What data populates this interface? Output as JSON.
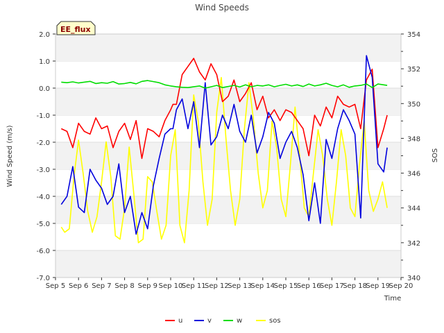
{
  "chart_data": {
    "type": "line",
    "title": "Wind Speeds",
    "badge": "EE_flux",
    "xlabel": "Time",
    "ylabel": "Wind Speed (m/s)",
    "y2label": "SOS",
    "x_ticks": [
      "Sep 5",
      "Sep 6",
      "Sep 7",
      "Sep 8",
      "Sep 9",
      "Sep 10",
      "Sep 11",
      "Sep 12",
      "Sep 13",
      "Sep 14",
      "Sep 15",
      "Sep 16",
      "Sep 17",
      "Sep 18",
      "Sep 19",
      "Sep 20"
    ],
    "xlim": [
      5,
      20
    ],
    "ylim": [
      -7.0,
      2.0
    ],
    "y_ticks": [
      "-7.0",
      "-6.0",
      "-5.0",
      "-4.0",
      "-3.0",
      "-2.0",
      "-1.0",
      "0.0",
      "1.0",
      "2.0"
    ],
    "y2lim": [
      340,
      354
    ],
    "y2_ticks": [
      "340",
      "342",
      "344",
      "346",
      "348",
      "350",
      "352",
      "354"
    ],
    "grid": "horizontal bands",
    "legend_position": "bottom-center",
    "series": [
      {
        "name": "u",
        "axis": "left",
        "color": "#ff0000",
        "x": [
          5.25,
          5.5,
          5.75,
          6.0,
          6.25,
          6.5,
          6.75,
          7.0,
          7.25,
          7.5,
          7.75,
          8.0,
          8.25,
          8.5,
          8.75,
          9.0,
          9.25,
          9.5,
          9.75,
          10.0,
          10.1,
          10.25,
          10.5,
          10.75,
          11.0,
          11.25,
          11.5,
          11.75,
          12.0,
          12.25,
          12.5,
          12.75,
          13.0,
          13.25,
          13.5,
          13.75,
          14.0,
          14.25,
          14.5,
          14.75,
          15.0,
          15.25,
          15.5,
          15.75,
          16.0,
          16.25,
          16.5,
          16.75,
          17.0,
          17.25,
          17.5,
          17.75,
          18.0,
          18.25,
          18.5,
          18.75,
          19.0,
          19.25,
          19.4
        ],
        "values": [
          -1.5,
          -1.6,
          -2.2,
          -1.3,
          -1.6,
          -1.7,
          -1.1,
          -1.5,
          -1.4,
          -2.2,
          -1.6,
          -1.3,
          -1.9,
          -1.2,
          -2.6,
          -1.5,
          -1.6,
          -1.8,
          -1.2,
          -0.8,
          -0.6,
          -0.6,
          0.5,
          0.8,
          1.1,
          0.6,
          0.3,
          0.9,
          0.5,
          -0.5,
          -0.3,
          0.3,
          -0.5,
          -0.2,
          0.2,
          -0.8,
          -0.3,
          -1.1,
          -0.8,
          -1.2,
          -0.8,
          -0.9,
          -1.2,
          -1.5,
          -2.5,
          -1.0,
          -1.4,
          -0.7,
          -1.1,
          -0.3,
          -0.6,
          -0.7,
          -0.6,
          -1.5,
          0.3,
          0.7,
          -2.2,
          -1.5,
          -1.0
        ]
      },
      {
        "name": "v",
        "axis": "left",
        "color": "#0000dd",
        "x": [
          5.25,
          5.5,
          5.75,
          6.0,
          6.25,
          6.5,
          6.75,
          7.0,
          7.25,
          7.5,
          7.75,
          8.0,
          8.25,
          8.5,
          8.75,
          9.0,
          9.25,
          9.5,
          9.75,
          10.0,
          10.1,
          10.25,
          10.5,
          10.75,
          11.0,
          11.25,
          11.5,
          11.75,
          12.0,
          12.25,
          12.5,
          12.75,
          13.0,
          13.25,
          13.5,
          13.75,
          14.0,
          14.25,
          14.5,
          14.75,
          15.0,
          15.25,
          15.5,
          15.75,
          16.0,
          16.25,
          16.5,
          16.75,
          17.0,
          17.25,
          17.5,
          17.75,
          18.0,
          18.25,
          18.5,
          18.75,
          19.0,
          19.25,
          19.4
        ],
        "values": [
          -4.3,
          -4.0,
          -2.9,
          -4.4,
          -4.6,
          -3.0,
          -3.4,
          -3.7,
          -4.3,
          -4.0,
          -2.8,
          -4.6,
          -4.0,
          -5.4,
          -4.6,
          -5.2,
          -3.6,
          -2.6,
          -1.7,
          -1.5,
          -1.5,
          -0.8,
          -0.4,
          -1.5,
          -0.5,
          -2.2,
          0.2,
          -2.1,
          -1.8,
          -1.0,
          -1.5,
          -0.6,
          -1.6,
          -2.0,
          -1.0,
          -2.4,
          -1.8,
          -0.9,
          -1.3,
          -2.6,
          -2.0,
          -1.6,
          -2.2,
          -3.2,
          -4.9,
          -3.5,
          -5.0,
          -1.9,
          -2.6,
          -1.5,
          -0.8,
          -1.2,
          -1.7,
          -4.8,
          1.2,
          0.4,
          -2.8,
          -3.1,
          -2.2
        ]
      },
      {
        "name": "w",
        "axis": "left",
        "color": "#00dd00",
        "x": [
          5.25,
          5.5,
          5.75,
          6.0,
          6.25,
          6.5,
          6.75,
          7.0,
          7.25,
          7.5,
          7.75,
          8.0,
          8.25,
          8.5,
          8.75,
          9.0,
          9.25,
          9.5,
          9.75,
          10.0,
          10.25,
          10.5,
          10.75,
          11.0,
          11.25,
          11.5,
          11.75,
          12.0,
          12.25,
          12.5,
          12.75,
          13.0,
          13.25,
          13.5,
          13.75,
          14.0,
          14.25,
          14.5,
          14.75,
          15.0,
          15.25,
          15.5,
          15.75,
          16.0,
          16.25,
          16.5,
          16.75,
          17.0,
          17.25,
          17.5,
          17.75,
          18.0,
          18.25,
          18.5,
          18.75,
          19.0,
          19.25,
          19.4
        ],
        "values": [
          0.22,
          0.2,
          0.23,
          0.19,
          0.22,
          0.25,
          0.17,
          0.2,
          0.18,
          0.24,
          0.15,
          0.17,
          0.21,
          0.16,
          0.25,
          0.28,
          0.24,
          0.2,
          0.12,
          0.08,
          0.05,
          0.03,
          0.02,
          0.05,
          0.08,
          0.0,
          0.05,
          0.1,
          0.02,
          0.06,
          0.1,
          0.04,
          0.12,
          0.05,
          0.1,
          0.08,
          0.12,
          0.05,
          0.1,
          0.14,
          0.08,
          0.12,
          0.06,
          0.15,
          0.08,
          0.12,
          0.18,
          0.1,
          0.05,
          0.12,
          0.03,
          0.08,
          0.1,
          0.15,
          0.02,
          0.15,
          0.12,
          0.1
        ]
      },
      {
        "name": "sos",
        "axis": "right",
        "color": "#ffff00",
        "x": [
          5.25,
          5.4,
          5.6,
          5.8,
          6.0,
          6.2,
          6.4,
          6.6,
          6.8,
          7.0,
          7.2,
          7.4,
          7.6,
          7.8,
          8.0,
          8.2,
          8.4,
          8.6,
          8.8,
          9.0,
          9.2,
          9.4,
          9.6,
          9.8,
          10.0,
          10.2,
          10.4,
          10.6,
          10.8,
          11.0,
          11.2,
          11.4,
          11.6,
          11.8,
          12.0,
          12.2,
          12.4,
          12.6,
          12.8,
          13.0,
          13.2,
          13.4,
          13.6,
          13.8,
          14.0,
          14.2,
          14.4,
          14.6,
          14.8,
          15.0,
          15.2,
          15.4,
          15.6,
          15.8,
          16.0,
          16.2,
          16.4,
          16.6,
          16.8,
          17.0,
          17.2,
          17.4,
          17.6,
          17.8,
          18.0,
          18.2,
          18.4,
          18.6,
          18.8,
          19.0,
          19.2,
          19.4
        ],
        "values": [
          342.9,
          342.6,
          342.8,
          345.8,
          347.9,
          346.0,
          343.8,
          342.6,
          343.5,
          345.5,
          347.8,
          345.8,
          342.4,
          342.2,
          344.0,
          347.5,
          344.8,
          342.0,
          342.2,
          345.8,
          345.5,
          343.8,
          342.2,
          343.0,
          347.0,
          348.5,
          343.0,
          342.0,
          345.0,
          350.5,
          349.0,
          345.5,
          343.0,
          344.5,
          349.5,
          351.5,
          348.0,
          345.0,
          343.0,
          344.5,
          348.5,
          351.2,
          349.0,
          346.0,
          344.0,
          345.0,
          349.0,
          347.5,
          344.5,
          343.5,
          346.5,
          349.8,
          347.0,
          344.0,
          343.5,
          346.0,
          348.5,
          347.0,
          344.5,
          343.0,
          345.5,
          348.5,
          347.0,
          344.0,
          343.5,
          346.5,
          349.0,
          345.0,
          343.8,
          344.5,
          345.5,
          344.0
        ]
      }
    ],
    "legend": [
      "u",
      "v",
      "w",
      "sos"
    ]
  }
}
